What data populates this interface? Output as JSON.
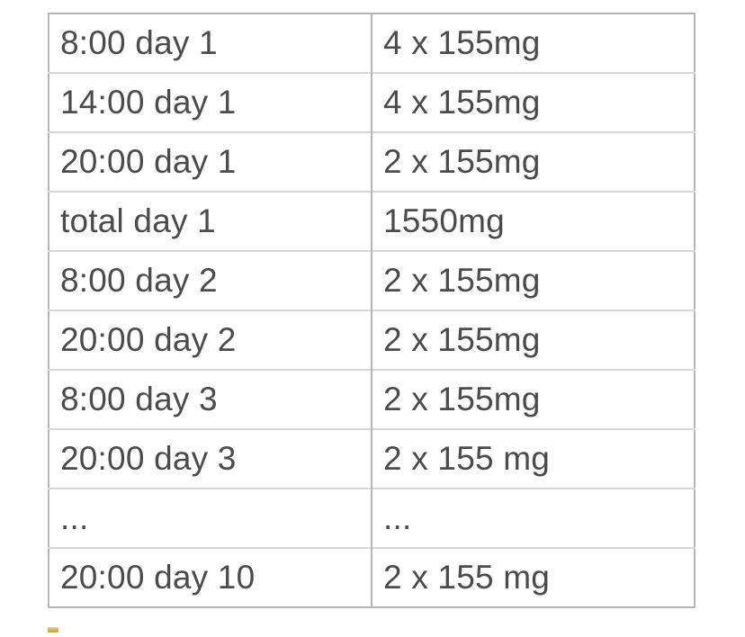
{
  "page": {
    "background_color": "#ffffff"
  },
  "table": {
    "description": "dosing-schedule",
    "columns": [
      "schedule_time",
      "dose_amount"
    ],
    "outer_border_color": "#b5b5b5",
    "row_divider_color": "#d8d8d8",
    "text_color": "#4b4b4b",
    "rows": [
      {
        "label": "8:00 day 1",
        "dose": "4 x 155mg"
      },
      {
        "label": "14:00 day 1",
        "dose": "4 x 155mg"
      },
      {
        "label": "20:00 day 1",
        "dose": "2 x 155mg"
      },
      {
        "label": "total day 1",
        "dose": "1550mg"
      },
      {
        "label": "8:00 day 2",
        "dose": "2 x 155mg"
      },
      {
        "label": "20:00 day 2",
        "dose": "2 x 155mg"
      },
      {
        "label": "8:00 day 3",
        "dose": "2 x 155mg"
      },
      {
        "label": "20:00 day 3",
        "dose": "2 x 155 mg"
      },
      {
        "label": "...",
        "dose": "..."
      },
      {
        "label": "20:00 day 10",
        "dose": "2 x 155 mg"
      }
    ]
  },
  "decoration": {
    "emoji_fragment_color": "#d3ab48"
  }
}
